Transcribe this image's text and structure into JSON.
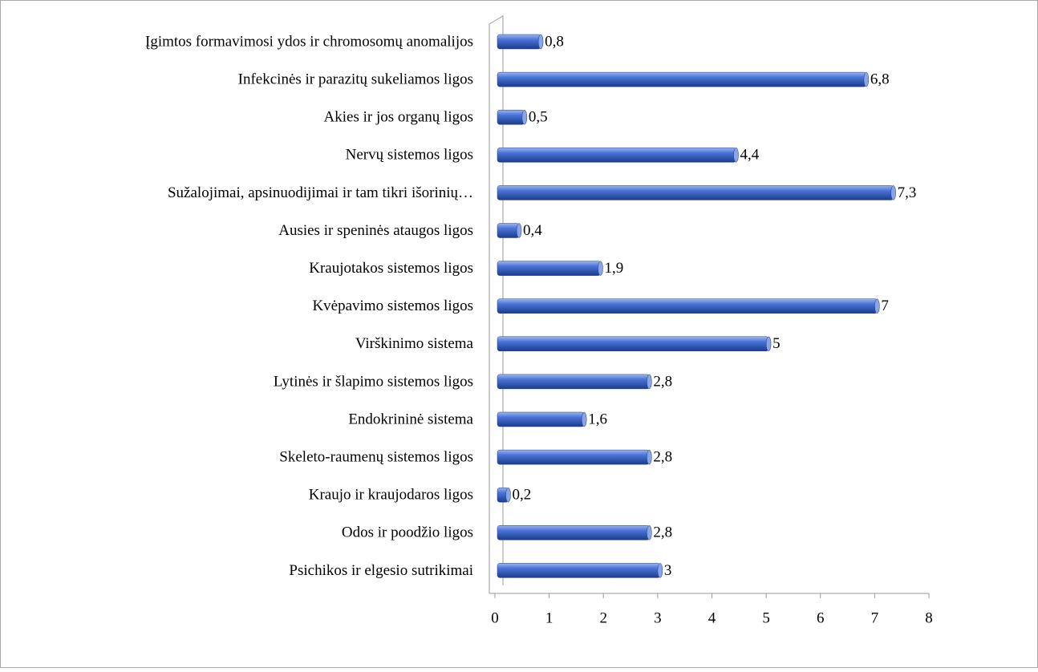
{
  "chart_data": {
    "type": "hbar",
    "categories": [
      "Įgimtos formavimosi ydos ir chromosomų anomalijos",
      "Infekcinės ir parazitų sukeliamos ligos",
      "Akies ir jos organų ligos",
      "Nervų sistemos ligos",
      "Sužalojimai, apsinuodijimai ir tam tikri išorinių…",
      "Ausies ir speninės ataugos ligos",
      "Kraujotakos sistemos ligos",
      "Kvėpavimo sistemos ligos",
      "Virškinimo sistema",
      "Lytinės ir šlapimo sistemos ligos",
      "Endokrininė sistema",
      "Skeleto-raumenų sistemos ligos",
      "Kraujo ir kraujodaros ligos",
      "Odos ir poodžio ligos",
      "Psichikos ir elgesio sutrikimai"
    ],
    "values": [
      0.8,
      6.8,
      0.5,
      4.4,
      7.3,
      0.4,
      1.9,
      7,
      5,
      2.8,
      1.6,
      2.8,
      0.2,
      2.8,
      3
    ],
    "value_labels": [
      "0,8",
      "6,8",
      "0,5",
      "4,4",
      "7,3",
      "0,4",
      "1,9",
      "7",
      "5",
      "2,8",
      "1,6",
      "2,8",
      "0,2",
      "2,8",
      "3"
    ],
    "color": "#3a64c8",
    "xlim": [
      0,
      8
    ],
    "xticks": [
      0,
      1,
      2,
      3,
      4,
      5,
      6,
      7,
      8
    ]
  }
}
